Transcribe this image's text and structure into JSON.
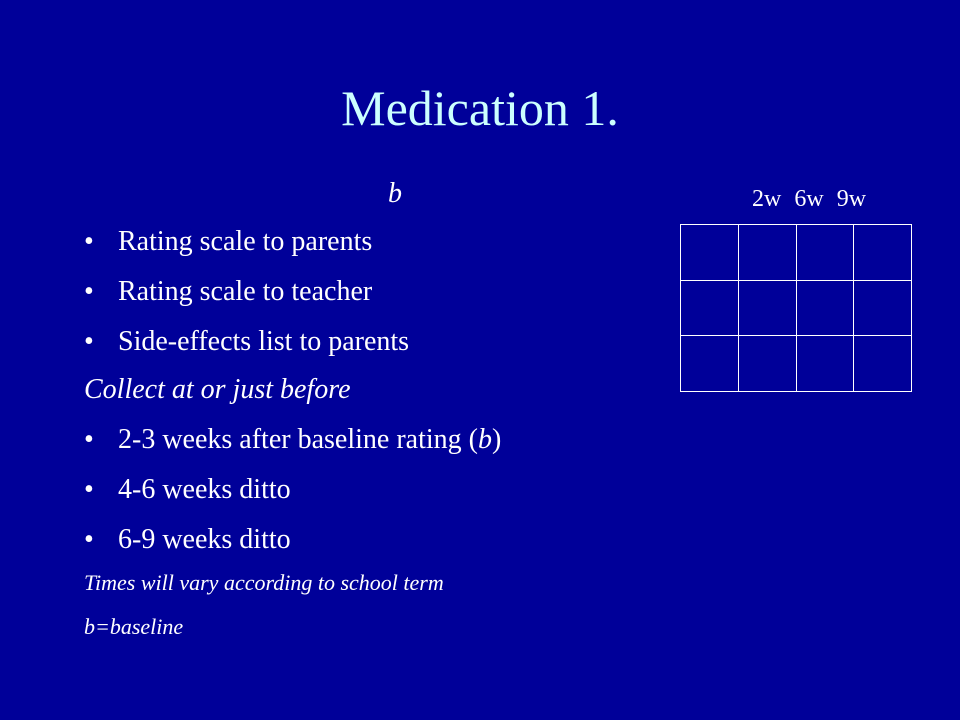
{
  "slide": {
    "title": "Medication 1.",
    "b_label": "b",
    "columns": [
      "2w",
      "6w",
      "9w"
    ],
    "grid": {
      "rows": 3,
      "cols": 4
    },
    "bullets": [
      "Rating scale to parents",
      "Rating scale to teacher",
      "Side-effects list to parents"
    ],
    "collect_heading": "Collect at or just before",
    "collect_bullets": [
      {
        "text": "2-3 weeks after baseline rating (",
        "italic": "b",
        "tail": ")"
      },
      {
        "text": "4-6 weeks ditto"
      },
      {
        "text": "6-9 weeks ditto"
      }
    ],
    "note_term": "Times will vary according to school term",
    "note_baseline": "b=baseline",
    "bullet_glyph": "•"
  },
  "colors": {
    "background": "#000099",
    "title": "#ccffff",
    "text": "#ffffff"
  }
}
